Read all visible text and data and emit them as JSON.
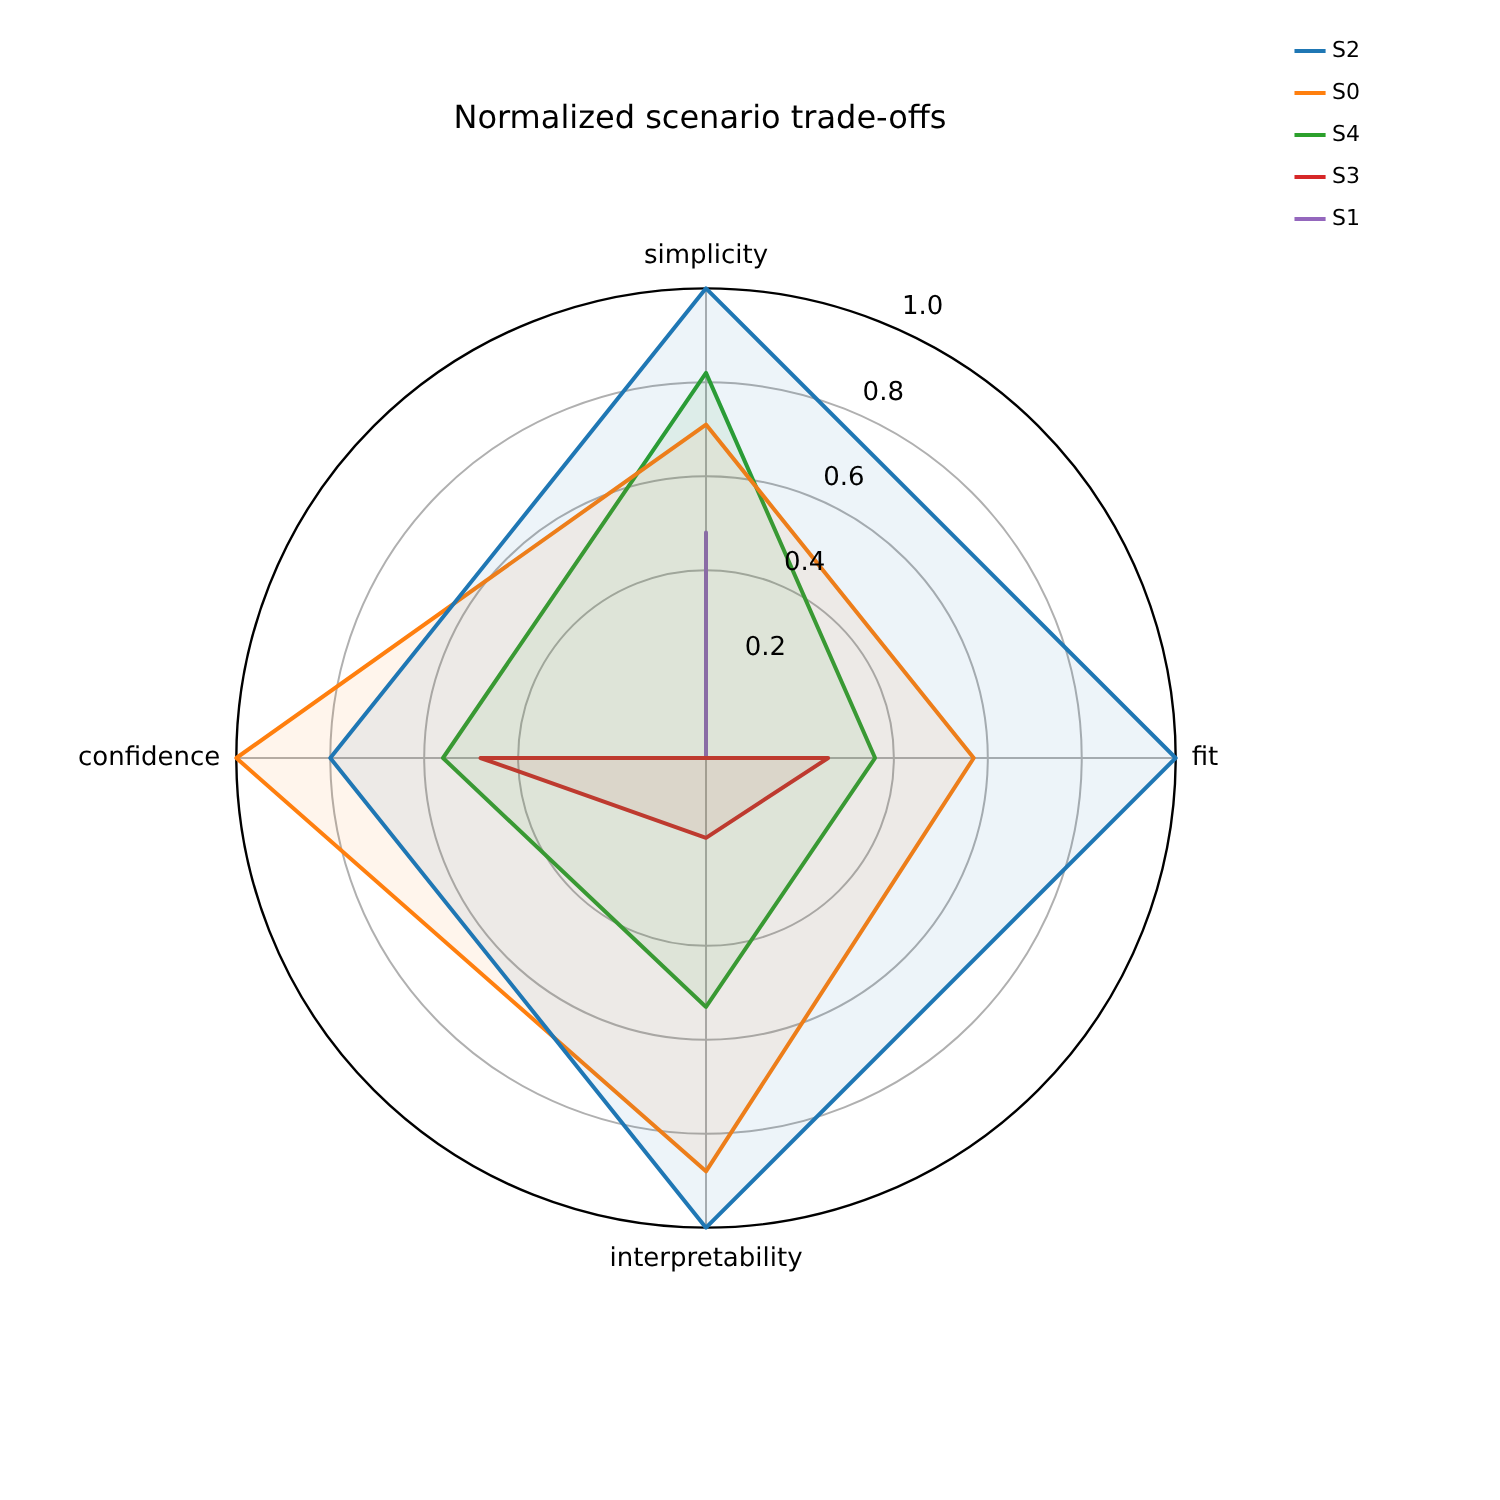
{
  "chart_data": {
    "type": "radar",
    "title": "Normalized scenario trade-offs",
    "categories": [
      "simplicity",
      "fit",
      "interpretability",
      "confidence"
    ],
    "ylim": [
      0,
      1
    ],
    "yticks": [
      0.2,
      0.4,
      0.6,
      0.8,
      {
        "value": 1.0,
        "label": "1.0"
      }
    ],
    "grid": true,
    "legend": "top right",
    "series": [
      {
        "name": "S2",
        "color": "#1f77b4",
        "values": [
          1.0,
          1.0,
          1.0,
          0.8
        ]
      },
      {
        "name": "S0",
        "color": "#ff7f0e",
        "values": [
          0.71,
          0.57,
          0.88,
          1.0
        ]
      },
      {
        "name": "S4",
        "color": "#2ca02c",
        "values": [
          0.82,
          0.36,
          0.53,
          0.56
        ]
      },
      {
        "name": "S3",
        "color": "#d62728",
        "values": [
          0,
          0.26,
          0.17,
          0.48
        ]
      },
      {
        "name": "S1",
        "color": "#9467bd",
        "values": [
          0.48,
          0,
          0,
          0
        ]
      }
    ]
  }
}
